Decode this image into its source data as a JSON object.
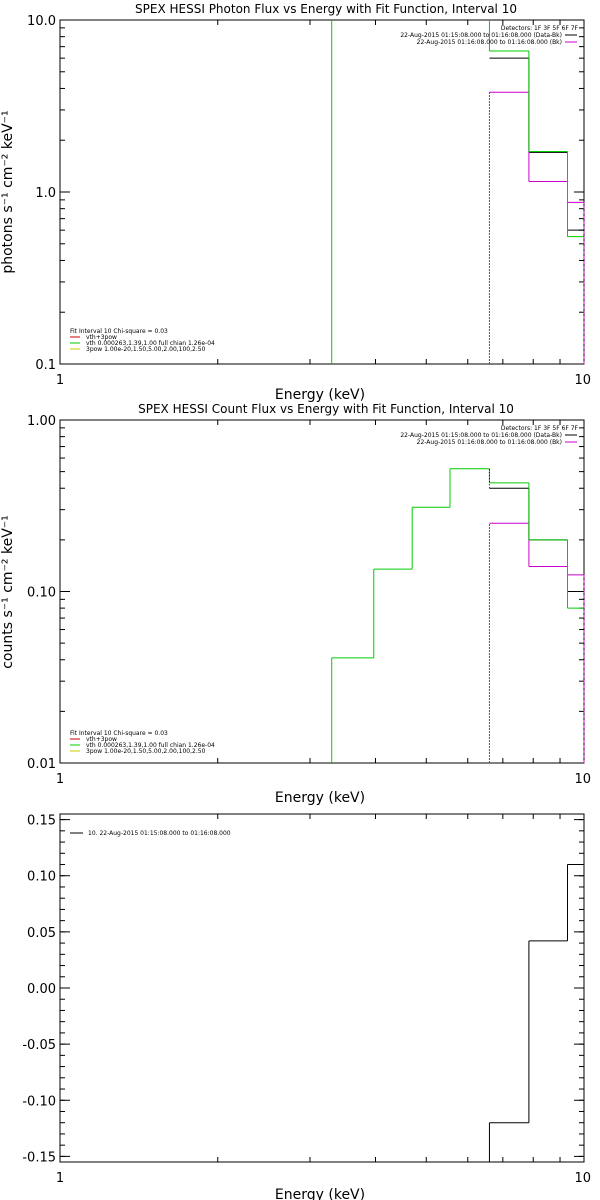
{
  "chart_data": [
    {
      "type": "line",
      "title": "SPEX HESSI Photon Flux vs Energy with Fit Function, Interval 10",
      "xlabel": "Energy (keV)",
      "ylabel": "photons s⁻¹ cm⁻² keV⁻¹",
      "xscale": "log",
      "yscale": "log",
      "xlim": [
        1,
        10
      ],
      "ylim": [
        0.1,
        10
      ],
      "xticks": [
        {
          "v": 1,
          "label": "1"
        },
        {
          "v": 10,
          "label": "10"
        }
      ],
      "yticks": [
        {
          "v": 0.1,
          "label": "0.1"
        },
        {
          "v": 1,
          "label": "1.0"
        },
        {
          "v": 10,
          "label": "10.0"
        }
      ],
      "detectors_text": "Detectors: 1F 3F 5F 6F 7F",
      "time_lines": [
        {
          "text": "22-Aug-2015 01:15:08.000 to 01:16:08.000 (Data-Bk)",
          "color": "#000000"
        },
        {
          "text": "22-Aug-2015 01:16:08.000 to 01:16:08.000 (Bk)",
          "color": "#cc00cc"
        }
      ],
      "fit_info": [
        {
          "text": "Fit Interval 10   Chi-square = 0.03",
          "color": ""
        },
        {
          "text": "vth+3pow",
          "color": "#cc0000"
        },
        {
          "text": "vth 0.000263,1.39,1.00  full chian 1.26e-04",
          "color": "#00cc00"
        },
        {
          "text": "3pow 1.00e-20,1.50,5.00,2.00,100,2.50",
          "color": "#cccc00"
        }
      ],
      "edges": [
        3.3,
        3.97,
        4.7,
        5.55,
        6.6,
        7.85,
        9.3,
        10
      ],
      "series": [
        {
          "id": "data",
          "color": "#000000",
          "values": [
            null,
            null,
            null,
            null,
            6.0,
            1.7,
            0.6
          ]
        },
        {
          "id": "background",
          "color": "#cc00cc",
          "values": [
            null,
            null,
            null,
            null,
            3.8,
            1.15,
            0.87
          ]
        },
        {
          "id": "fit",
          "color": "#00cc00",
          "values": [
            null,
            null,
            null,
            null,
            6.6,
            1.72,
            0.55
          ]
        }
      ],
      "vlines": [
        {
          "x": 3.3,
          "color": "#00cc00",
          "from": 0.1,
          "to": 10
        },
        {
          "x": 6.6,
          "color": "#00cc00",
          "from": 6.6,
          "to": 10
        },
        {
          "x": 6.6,
          "color": "#cc00cc",
          "from": 0.1,
          "to": 3.8,
          "dash": "2,1"
        },
        {
          "x": 10,
          "color": "#cc00cc",
          "from": 0.1,
          "to": 0.87,
          "dash": "3,2"
        }
      ]
    },
    {
      "type": "line",
      "title": "SPEX HESSI Count Flux vs Energy with Fit Function, Interval 10",
      "xlabel": "Energy (keV)",
      "ylabel": "counts s⁻¹ cm⁻² keV⁻¹",
      "xscale": "log",
      "yscale": "log",
      "xlim": [
        1,
        10
      ],
      "ylim": [
        0.01,
        1
      ],
      "xticks": [
        {
          "v": 1,
          "label": "1"
        },
        {
          "v": 10,
          "label": "10"
        }
      ],
      "yticks": [
        {
          "v": 0.01,
          "label": "0.01"
        },
        {
          "v": 0.1,
          "label": "0.10"
        },
        {
          "v": 1,
          "label": "1.00"
        }
      ],
      "detectors_text": "Detectors: 1F 3F 5F 6F 7F",
      "time_lines": [
        {
          "text": "22-Aug-2015 01:15:08.000 to 01:16:08.000 (Data-Bk)",
          "color": "#000000"
        },
        {
          "text": "22-Aug-2015 01:16:08.000 to 01:16:08.000 (Bk)",
          "color": "#cc00cc"
        }
      ],
      "fit_info": [
        {
          "text": "Fit Interval 10   Chi-square = 0.03",
          "color": ""
        },
        {
          "text": "vth+3pow",
          "color": "#cc0000"
        },
        {
          "text": "vth 0.000263,1.39,1.00  full chian 1.26e-04",
          "color": "#00cc00"
        },
        {
          "text": "3pow 1.00e-20,1.50,5.00,2.00,100,2.50",
          "color": "#cccc00"
        }
      ],
      "edges": [
        3.3,
        3.97,
        4.7,
        5.55,
        6.6,
        7.85,
        9.3,
        10
      ],
      "series": [
        {
          "id": "data",
          "color": "#000000",
          "values": [
            null,
            null,
            null,
            null,
            0.4,
            0.2,
            0.1
          ]
        },
        {
          "id": "background",
          "color": "#cc00cc",
          "values": [
            null,
            null,
            null,
            null,
            0.25,
            0.14,
            0.125
          ]
        },
        {
          "id": "fit",
          "color": "#00cc00",
          "values": [
            0.041,
            0.135,
            0.31,
            0.52,
            0.43,
            0.2,
            0.08
          ]
        }
      ],
      "vlines": [
        {
          "x": 3.3,
          "color": "#00cc00",
          "from": 0.01,
          "to": 0.041
        },
        {
          "x": 6.6,
          "color": "#cc00cc",
          "from": 0.01,
          "to": 0.25,
          "dash": "2,1"
        },
        {
          "x": 6.6,
          "color": "#000000",
          "from": 0.4,
          "to": 0.52,
          "dash": "1,2"
        },
        {
          "x": 10,
          "color": "#cc00cc",
          "from": 0.01,
          "to": 0.125,
          "dash": "3,2"
        }
      ]
    },
    {
      "type": "line",
      "title": "",
      "xlabel": "Energy (keV)",
      "ylabel": "",
      "xscale": "log",
      "yscale": "linear",
      "xlim": [
        1,
        10
      ],
      "ylim": [
        -0.155,
        0.155
      ],
      "xticks": [
        {
          "v": 1,
          "label": "1"
        },
        {
          "v": 10,
          "label": "10"
        }
      ],
      "yticks": [
        {
          "v": 0.15,
          "label": "0.15"
        },
        {
          "v": 0.1,
          "label": "0.10"
        },
        {
          "v": 0.05,
          "label": "0.05"
        },
        {
          "v": 0.0,
          "label": "0.00"
        },
        {
          "v": -0.05,
          "label": "-0.05"
        },
        {
          "v": -0.1,
          "label": "-0.10"
        },
        {
          "v": -0.15,
          "label": "-0.15"
        }
      ],
      "legend": [
        {
          "text": "10. 22-Aug-2015 01:15:08.000 to 01:16:08.000",
          "color": "#000000"
        }
      ],
      "edges": [
        6.6,
        7.85,
        9.3,
        10
      ],
      "series": [
        {
          "id": "residuals",
          "color": "#000000",
          "values": [
            -0.12,
            0.042,
            0.11
          ]
        }
      ],
      "vlines": [
        {
          "x": 6.6,
          "color": "#000000",
          "from": -0.155,
          "to": -0.12
        }
      ]
    }
  ]
}
